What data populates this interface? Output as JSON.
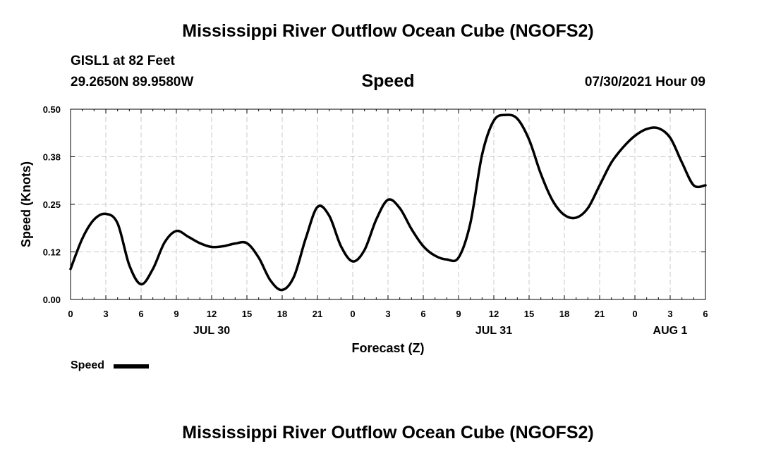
{
  "header": {
    "title": "Mississippi River Outflow Ocean Cube (NGOFS2)",
    "station": "GISL1 at 82 Feet",
    "coords": "29.2650N  89.9580W",
    "variable": "Speed",
    "datetime": "07/30/2021 Hour 09"
  },
  "footer": {
    "title": "Mississippi River Outflow Ocean Cube (NGOFS2)"
  },
  "legend": {
    "label": "Speed",
    "color": "#000000"
  },
  "chart_data": {
    "type": "line",
    "xlabel": "Forecast (Z)",
    "ylabel": "Speed (Knots)",
    "xlim": [
      0,
      54
    ],
    "ylim": [
      0,
      0.5
    ],
    "grid": true,
    "x_tick_values": [
      0,
      3,
      6,
      9,
      12,
      15,
      18,
      21,
      24,
      27,
      30,
      33,
      36,
      39,
      42,
      45,
      48,
      51,
      54
    ],
    "x_tick_labels": [
      "0",
      "3",
      "6",
      "9",
      "12",
      "15",
      "18",
      "21",
      "0",
      "3",
      "6",
      "9",
      "12",
      "15",
      "18",
      "21",
      "0",
      "3",
      "6"
    ],
    "y_tick_values": [
      0,
      0.125,
      0.25,
      0.375,
      0.5
    ],
    "y_tick_labels": [
      "0.00",
      "0.12",
      "0.25",
      "0.38",
      "0.50"
    ],
    "date_labels": [
      {
        "x": 12,
        "label": "JUL 30"
      },
      {
        "x": 36,
        "label": "JUL 31"
      },
      {
        "x": 51,
        "label": "AUG 1"
      }
    ],
    "series": [
      {
        "name": "Speed",
        "color": "#000000",
        "x": [
          0,
          1,
          2,
          3,
          4,
          5,
          6,
          7,
          8,
          9,
          10,
          11,
          12,
          13,
          14,
          15,
          16,
          17,
          18,
          19,
          20,
          21,
          22,
          23,
          24,
          25,
          26,
          27,
          28,
          29,
          30,
          31,
          32,
          33,
          34,
          35,
          36,
          37,
          38,
          39,
          40,
          41,
          42,
          43,
          44,
          45,
          46,
          47,
          48,
          49,
          50,
          51,
          52,
          53,
          54
        ],
        "y": [
          0.08,
          0.16,
          0.21,
          0.225,
          0.2,
          0.09,
          0.04,
          0.08,
          0.15,
          0.18,
          0.165,
          0.148,
          0.138,
          0.14,
          0.147,
          0.148,
          0.11,
          0.05,
          0.025,
          0.06,
          0.16,
          0.243,
          0.22,
          0.14,
          0.1,
          0.13,
          0.21,
          0.262,
          0.24,
          0.185,
          0.14,
          0.115,
          0.105,
          0.11,
          0.2,
          0.38,
          0.47,
          0.485,
          0.475,
          0.42,
          0.33,
          0.26,
          0.222,
          0.215,
          0.24,
          0.3,
          0.36,
          0.4,
          0.43,
          0.448,
          0.45,
          0.425,
          0.36,
          0.3,
          0.3
        ]
      }
    ]
  }
}
